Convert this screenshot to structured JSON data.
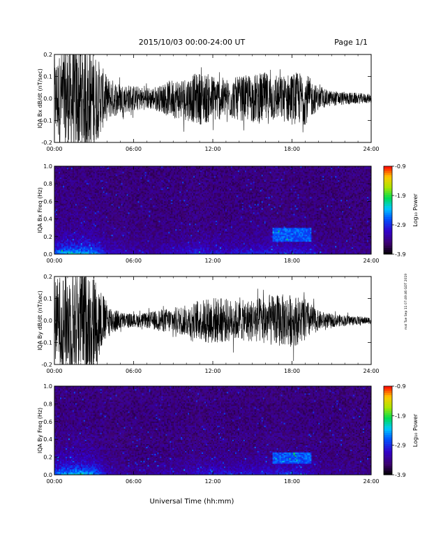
{
  "header": {
    "title": "2015/10/03  00:00-24:00 UT",
    "page": "Page 1/1"
  },
  "footer": {
    "xlabel": "Universal Time (hh:mm)",
    "side_note": "mal Tue Sep 11 07:49:46 GDT 2019"
  },
  "colorbar": {
    "ticks": [
      "-0.9",
      "-1.9",
      "-2.9",
      "-3.9"
    ],
    "label": "Log₁₀ Power"
  },
  "chart_data": [
    {
      "type": "line",
      "ylabel": "IQA Bx dB/dt (nT/sec)",
      "x_ticks": [
        "00:00",
        "06:00",
        "12:00",
        "18:00",
        "24:00"
      ],
      "y_ticks": [
        "0.2",
        "0.1",
        "0.0",
        "-0.1",
        "-0.2"
      ],
      "xlim": [
        0,
        24
      ],
      "ylim": [
        -0.2,
        0.2
      ],
      "series": [
        {
          "hours": [
            0,
            1,
            2,
            3,
            4,
            5,
            6,
            7,
            8,
            9,
            10,
            11,
            12,
            13,
            14,
            15,
            16,
            17,
            18,
            19,
            20,
            21,
            22,
            23,
            24
          ],
          "amplitude": [
            0.18,
            0.25,
            0.25,
            0.22,
            0.1,
            0.07,
            0.06,
            0.05,
            0.06,
            0.09,
            0.1,
            0.12,
            0.11,
            0.09,
            0.1,
            0.11,
            0.12,
            0.1,
            0.12,
            0.12,
            0.05,
            0.035,
            0.03,
            0.025,
            0.02
          ]
        }
      ]
    },
    {
      "type": "heatmap",
      "ylabel": "IQA Bx Freq (Hz)",
      "x_ticks": [
        "00:00",
        "06:00",
        "12:00",
        "18:00",
        "24:00"
      ],
      "y_ticks": [
        "1.0",
        "0.8",
        "0.6",
        "0.4",
        "0.2",
        "0.0"
      ],
      "xlim": [
        0,
        24
      ],
      "ylim": [
        0,
        1
      ],
      "zlim": [
        -3.9,
        -0.9
      ],
      "features": [
        {
          "hours": [
            16.5,
            19.5
          ],
          "freq": [
            0.15,
            0.3
          ],
          "level": -2.7
        }
      ]
    },
    {
      "type": "line",
      "ylabel": "IQA By dB/dt (nT/sec)",
      "x_ticks": [
        "00:00",
        "06:00",
        "12:00",
        "18:00",
        "24:00"
      ],
      "y_ticks": [
        "0.2",
        "0.1",
        "0.0",
        "-0.1",
        "-0.2"
      ],
      "xlim": [
        0,
        24
      ],
      "ylim": [
        -0.2,
        0.2
      ],
      "series": [
        {
          "hours": [
            0,
            1,
            2,
            3,
            4,
            5,
            6,
            7,
            8,
            9,
            10,
            11,
            12,
            13,
            14,
            15,
            16,
            17,
            18,
            19,
            20,
            21,
            22,
            23,
            24
          ],
          "amplitude": [
            0.18,
            0.25,
            0.25,
            0.22,
            0.08,
            0.04,
            0.03,
            0.035,
            0.05,
            0.06,
            0.07,
            0.09,
            0.11,
            0.1,
            0.09,
            0.1,
            0.11,
            0.12,
            0.12,
            0.1,
            0.045,
            0.03,
            0.025,
            0.02,
            0.015
          ]
        }
      ]
    },
    {
      "type": "heatmap",
      "ylabel": "IQA By Freq (Hz)",
      "x_ticks": [
        "00:00",
        "06:00",
        "12:00",
        "18:00",
        "24:00"
      ],
      "y_ticks": [
        "1.0",
        "0.8",
        "0.6",
        "0.4",
        "0.2",
        "0.0"
      ],
      "xlim": [
        0,
        24
      ],
      "ylim": [
        0,
        1
      ],
      "zlim": [
        -3.9,
        -0.9
      ],
      "features": [
        {
          "hours": [
            16.5,
            19.5
          ],
          "freq": [
            0.12,
            0.25
          ],
          "level": -2.7
        }
      ]
    }
  ]
}
